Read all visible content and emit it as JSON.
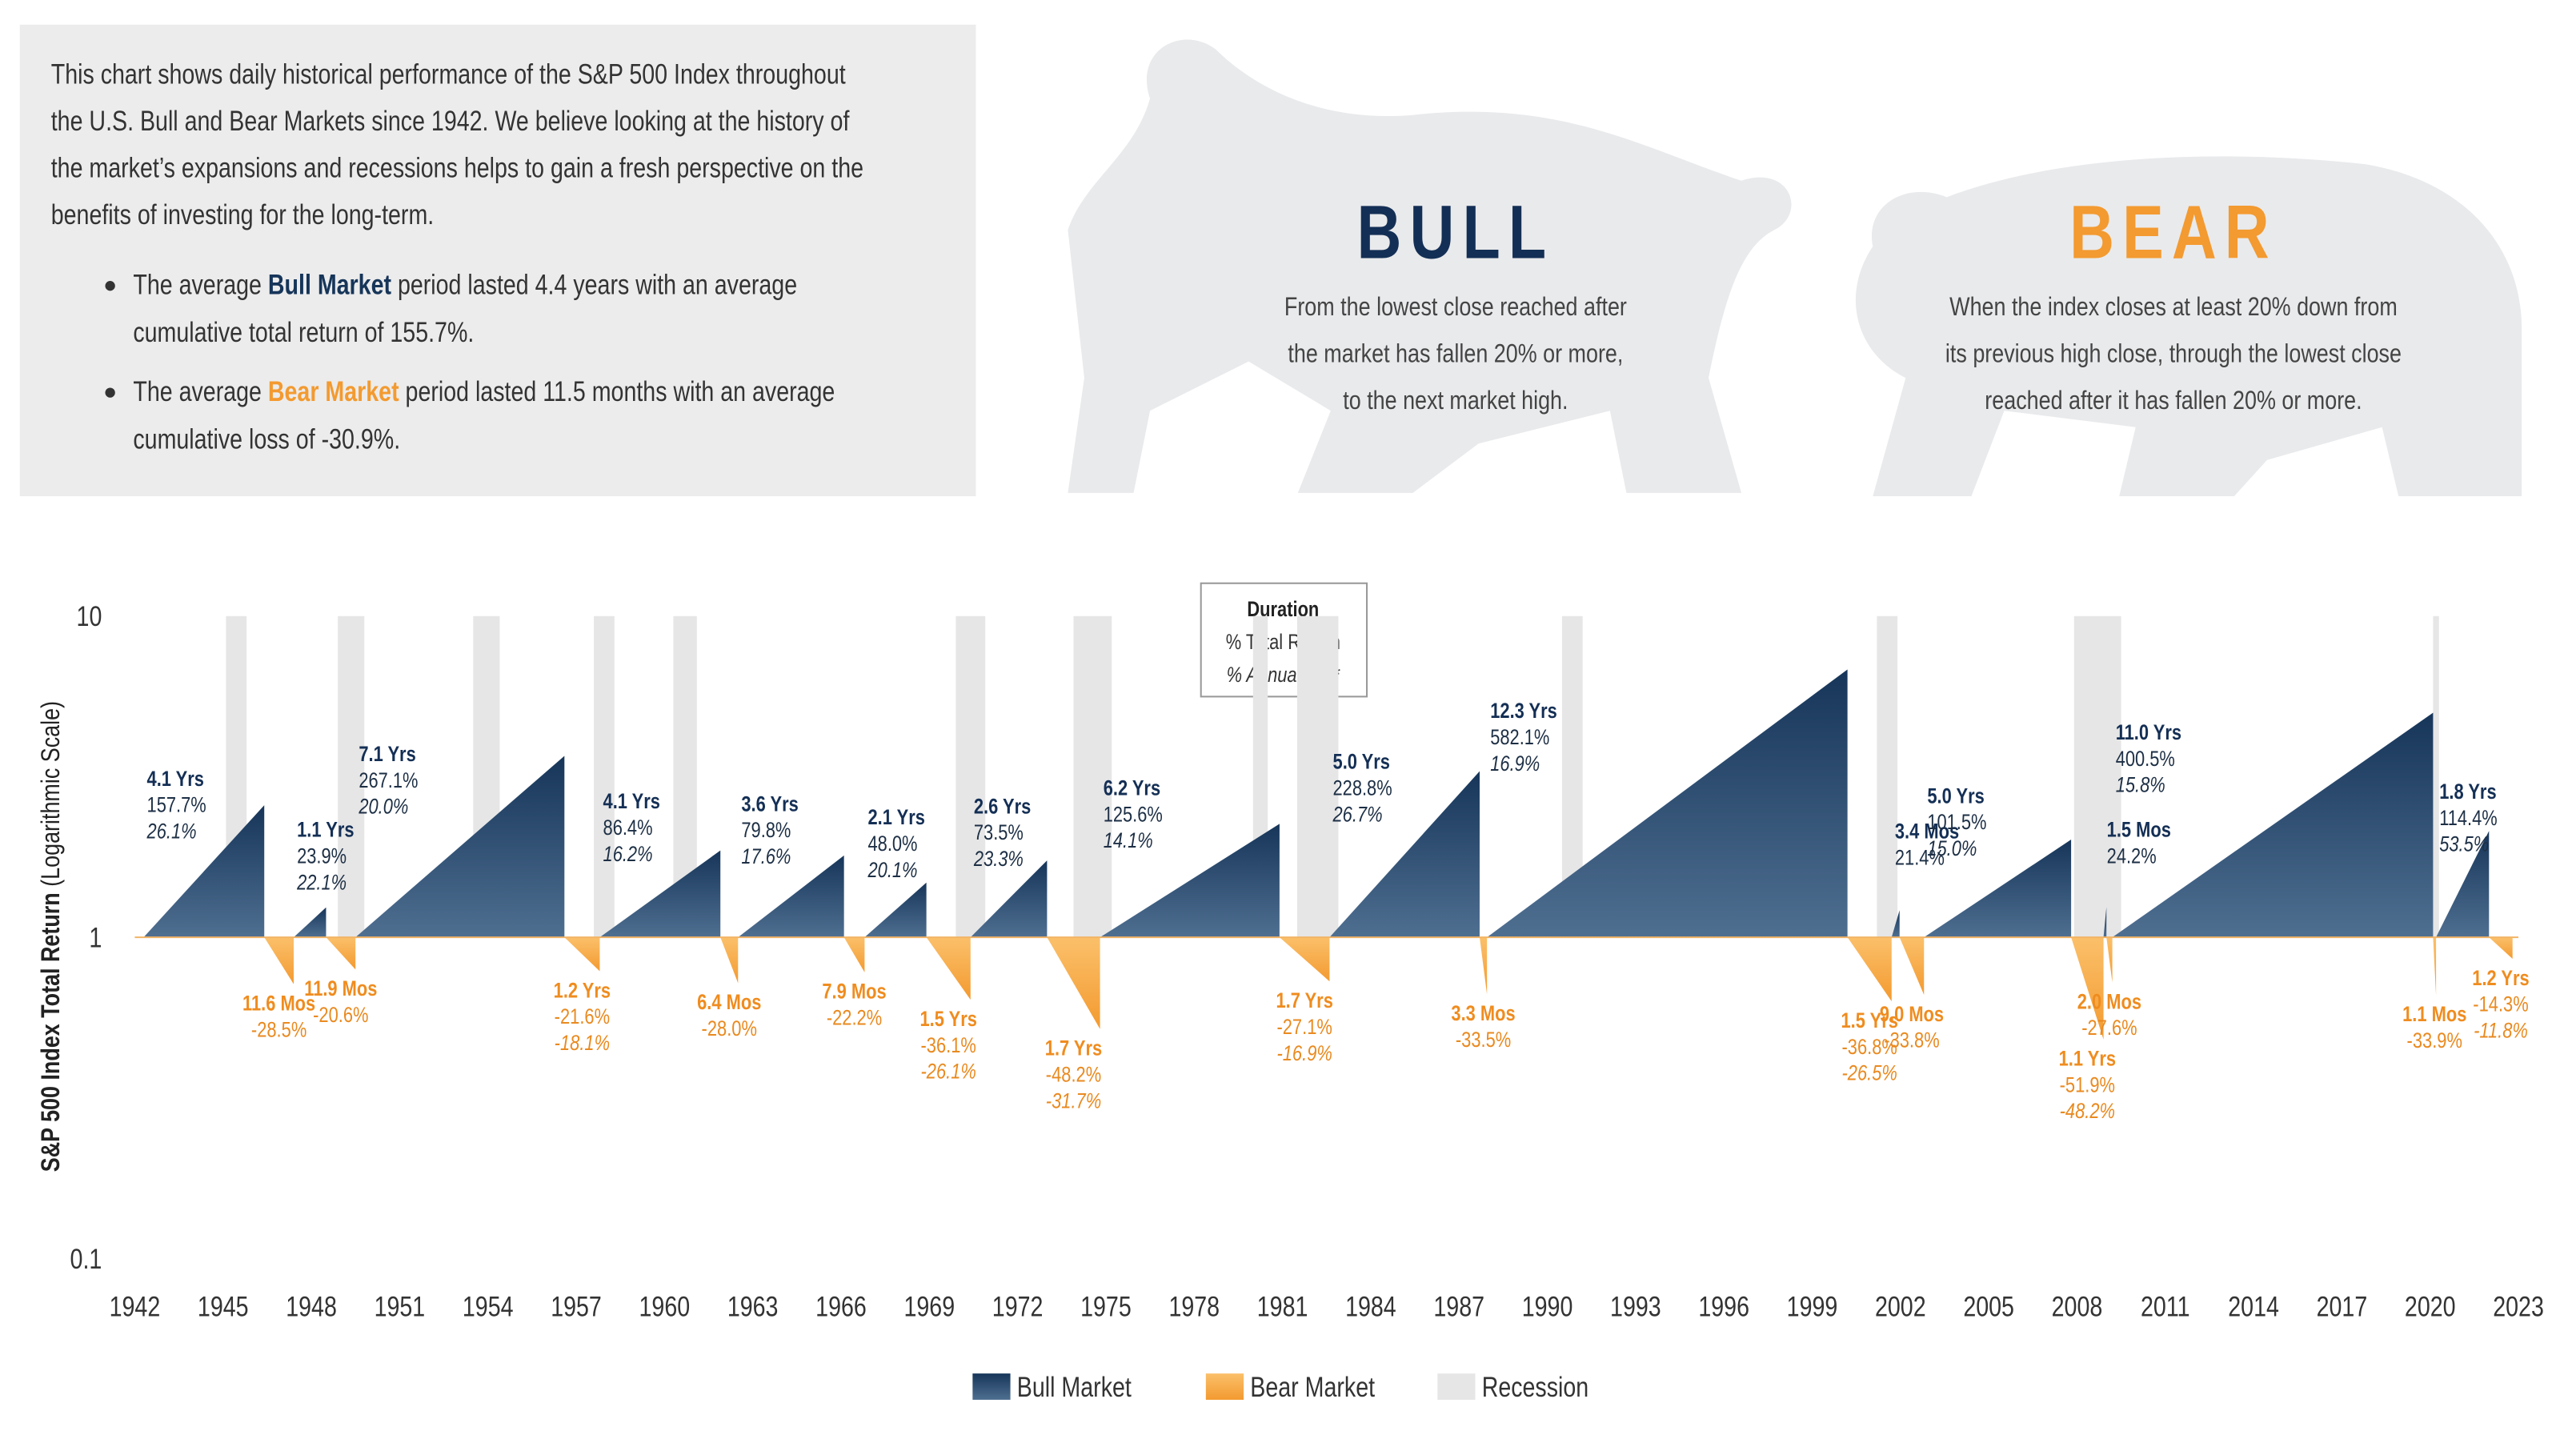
{
  "intro": {
    "lines": [
      "This chart shows daily historical performance of the S&P 500 Index throughout",
      "the U.S. Bull and Bear Markets since 1942. We believe looking at the history of",
      "the market’s expansions and recessions helps to gain a fresh perspective on the",
      "benefits of investing for the long-term."
    ],
    "bullets": [
      {
        "lead": "The average ",
        "term": "Bull Market",
        "rest": " period lasted 4.4 years with an average",
        "line2": "cumulative total return of 155.7%."
      },
      {
        "lead": "The average ",
        "term": "Bear Market",
        "rest": " period lasted 11.5 months with an average",
        "line2": "cumulative loss of -30.9%."
      }
    ]
  },
  "bull": {
    "title": "BULL",
    "lines": [
      "From the lowest close reached after",
      "the market has fallen 20% or more,",
      "to the next market high."
    ]
  },
  "bear": {
    "title": "BEAR",
    "lines": [
      "When the index closes at least 20% down from",
      "its previous high close, through the lowest close",
      "reached after it has fallen 20% or more."
    ]
  },
  "chart_data": {
    "type": "area",
    "ylabel": "S&P 500 Index Total Return",
    "ylabel_note": "(Logarithmic Scale)",
    "log_y": true,
    "ylim": [
      0.1,
      10
    ],
    "yticks": [
      0.1,
      1,
      10
    ],
    "xlim": [
      1942,
      2023
    ],
    "xticks": [
      1942,
      1945,
      1948,
      1951,
      1954,
      1957,
      1960,
      1963,
      1966,
      1969,
      1972,
      1975,
      1978,
      1981,
      1984,
      1987,
      1990,
      1993,
      1996,
      1999,
      2002,
      2005,
      2008,
      2011,
      2014,
      2017,
      2020,
      2023
    ],
    "key": {
      "title": "Duration",
      "lines": [
        "% Total Return",
        "% Annualized*"
      ]
    },
    "series": [
      {
        "name": "Bull Market",
        "color": "#163559",
        "start": [
          1942.3,
          1947.4,
          1949.5,
          1957.8,
          1962.5,
          1966.8,
          1970.4,
          1974.8,
          1982.6,
          1987.95,
          2001.7,
          2002.8,
          2008.9,
          2009.2,
          2020.2
        ],
        "end": [
          1946.4,
          1948.5,
          1956.6,
          1961.9,
          1966.1,
          1968.9,
          1973.0,
          1980.9,
          1987.7,
          2000.2,
          2001.97,
          2007.8,
          2009.0,
          2020.1,
          2022.0
        ],
        "durations": [
          "4.1 Yrs",
          "1.1 Yrs",
          "7.1 Yrs",
          "4.1 Yrs",
          "3.6 Yrs",
          "2.1 Yrs",
          "2.6 Yrs",
          "6.2 Yrs",
          "5.0 Yrs",
          "12.3 Yrs",
          "3.4 Mos",
          "5.0 Yrs",
          "1.5 Mos",
          "11.0 Yrs",
          "1.8 Yrs"
        ],
        "values": [
          157.7,
          23.9,
          267.1,
          86.4,
          79.8,
          48.0,
          73.5,
          125.6,
          228.8,
          582.1,
          21.4,
          101.5,
          24.2,
          400.5,
          114.4
        ],
        "value_labels": [
          "157.7%",
          "23.9%",
          "267.1%",
          "86.4%",
          "79.8%",
          "48.0%",
          "73.5%",
          "125.6%",
          "228.8%",
          "582.1%",
          "21.4%",
          "101.5%",
          "24.2%",
          "400.5%",
          "114.4%"
        ],
        "annualized": [
          "26.1%",
          "22.1%",
          "20.0%",
          "16.2%",
          "17.6%",
          "20.1%",
          "23.3%",
          "14.1%",
          "26.7%",
          "16.9%",
          null,
          "15.0%",
          null,
          "15.8%",
          "53.5%"
        ]
      },
      {
        "name": "Bear Market",
        "color": "#f39a30",
        "start": [
          1946.4,
          1948.5,
          1956.6,
          1961.9,
          1966.1,
          1968.9,
          1973.0,
          1980.9,
          1987.7,
          2000.2,
          2001.97,
          2007.8,
          2009.0,
          2020.1,
          2022.0
        ],
        "end": [
          1947.4,
          1949.5,
          1957.8,
          1962.5,
          1966.8,
          1970.4,
          1974.8,
          1982.6,
          1987.95,
          2001.7,
          2002.8,
          2008.9,
          2009.2,
          2020.2,
          2022.8
        ],
        "durations": [
          "11.6 Mos",
          "11.9 Mos",
          "1.2 Yrs",
          "6.4 Mos",
          "7.9 Mos",
          "1.5 Yrs",
          "1.7 Yrs",
          "1.7 Yrs",
          "3.3 Mos",
          "1.5 Yrs",
          "9.0 Mos",
          "1.1 Yrs",
          "2.0 Mos",
          "1.1 Mos",
          "1.2 Yrs"
        ],
        "values": [
          -28.5,
          -20.6,
          -21.6,
          -28.0,
          -22.2,
          -36.1,
          -48.2,
          -27.1,
          -33.5,
          -36.8,
          -33.8,
          -51.9,
          -27.6,
          -33.9,
          -14.3
        ],
        "value_labels": [
          "-28.5%",
          "-20.6%",
          "-21.6%",
          "-28.0%",
          "-22.2%",
          "-36.1%",
          "-48.2%",
          "-27.1%",
          "-33.5%",
          "-36.8%",
          "-33.8%",
          "-51.9%",
          "-27.6%",
          "-33.9%",
          "-14.3%"
        ],
        "annualized": [
          null,
          null,
          "-18.1%",
          null,
          null,
          "-26.1%",
          "-31.7%",
          "-16.9%",
          null,
          "-26.5%",
          null,
          "-48.2%",
          null,
          null,
          "-11.8%"
        ]
      }
    ],
    "recessions": {
      "name": "Recession",
      "color": "#e6e6e6",
      "start": [
        1945.1,
        1948.9,
        1953.5,
        1957.6,
        1960.3,
        1969.9,
        1973.9,
        1980.0,
        1981.5,
        1990.5,
        2001.2,
        2007.9,
        2020.1
      ],
      "end": [
        1945.8,
        1949.8,
        1954.4,
        1958.3,
        1961.1,
        1970.9,
        1975.2,
        1980.5,
        1982.9,
        1991.2,
        2001.9,
        2009.5,
        2020.3
      ]
    }
  }
}
